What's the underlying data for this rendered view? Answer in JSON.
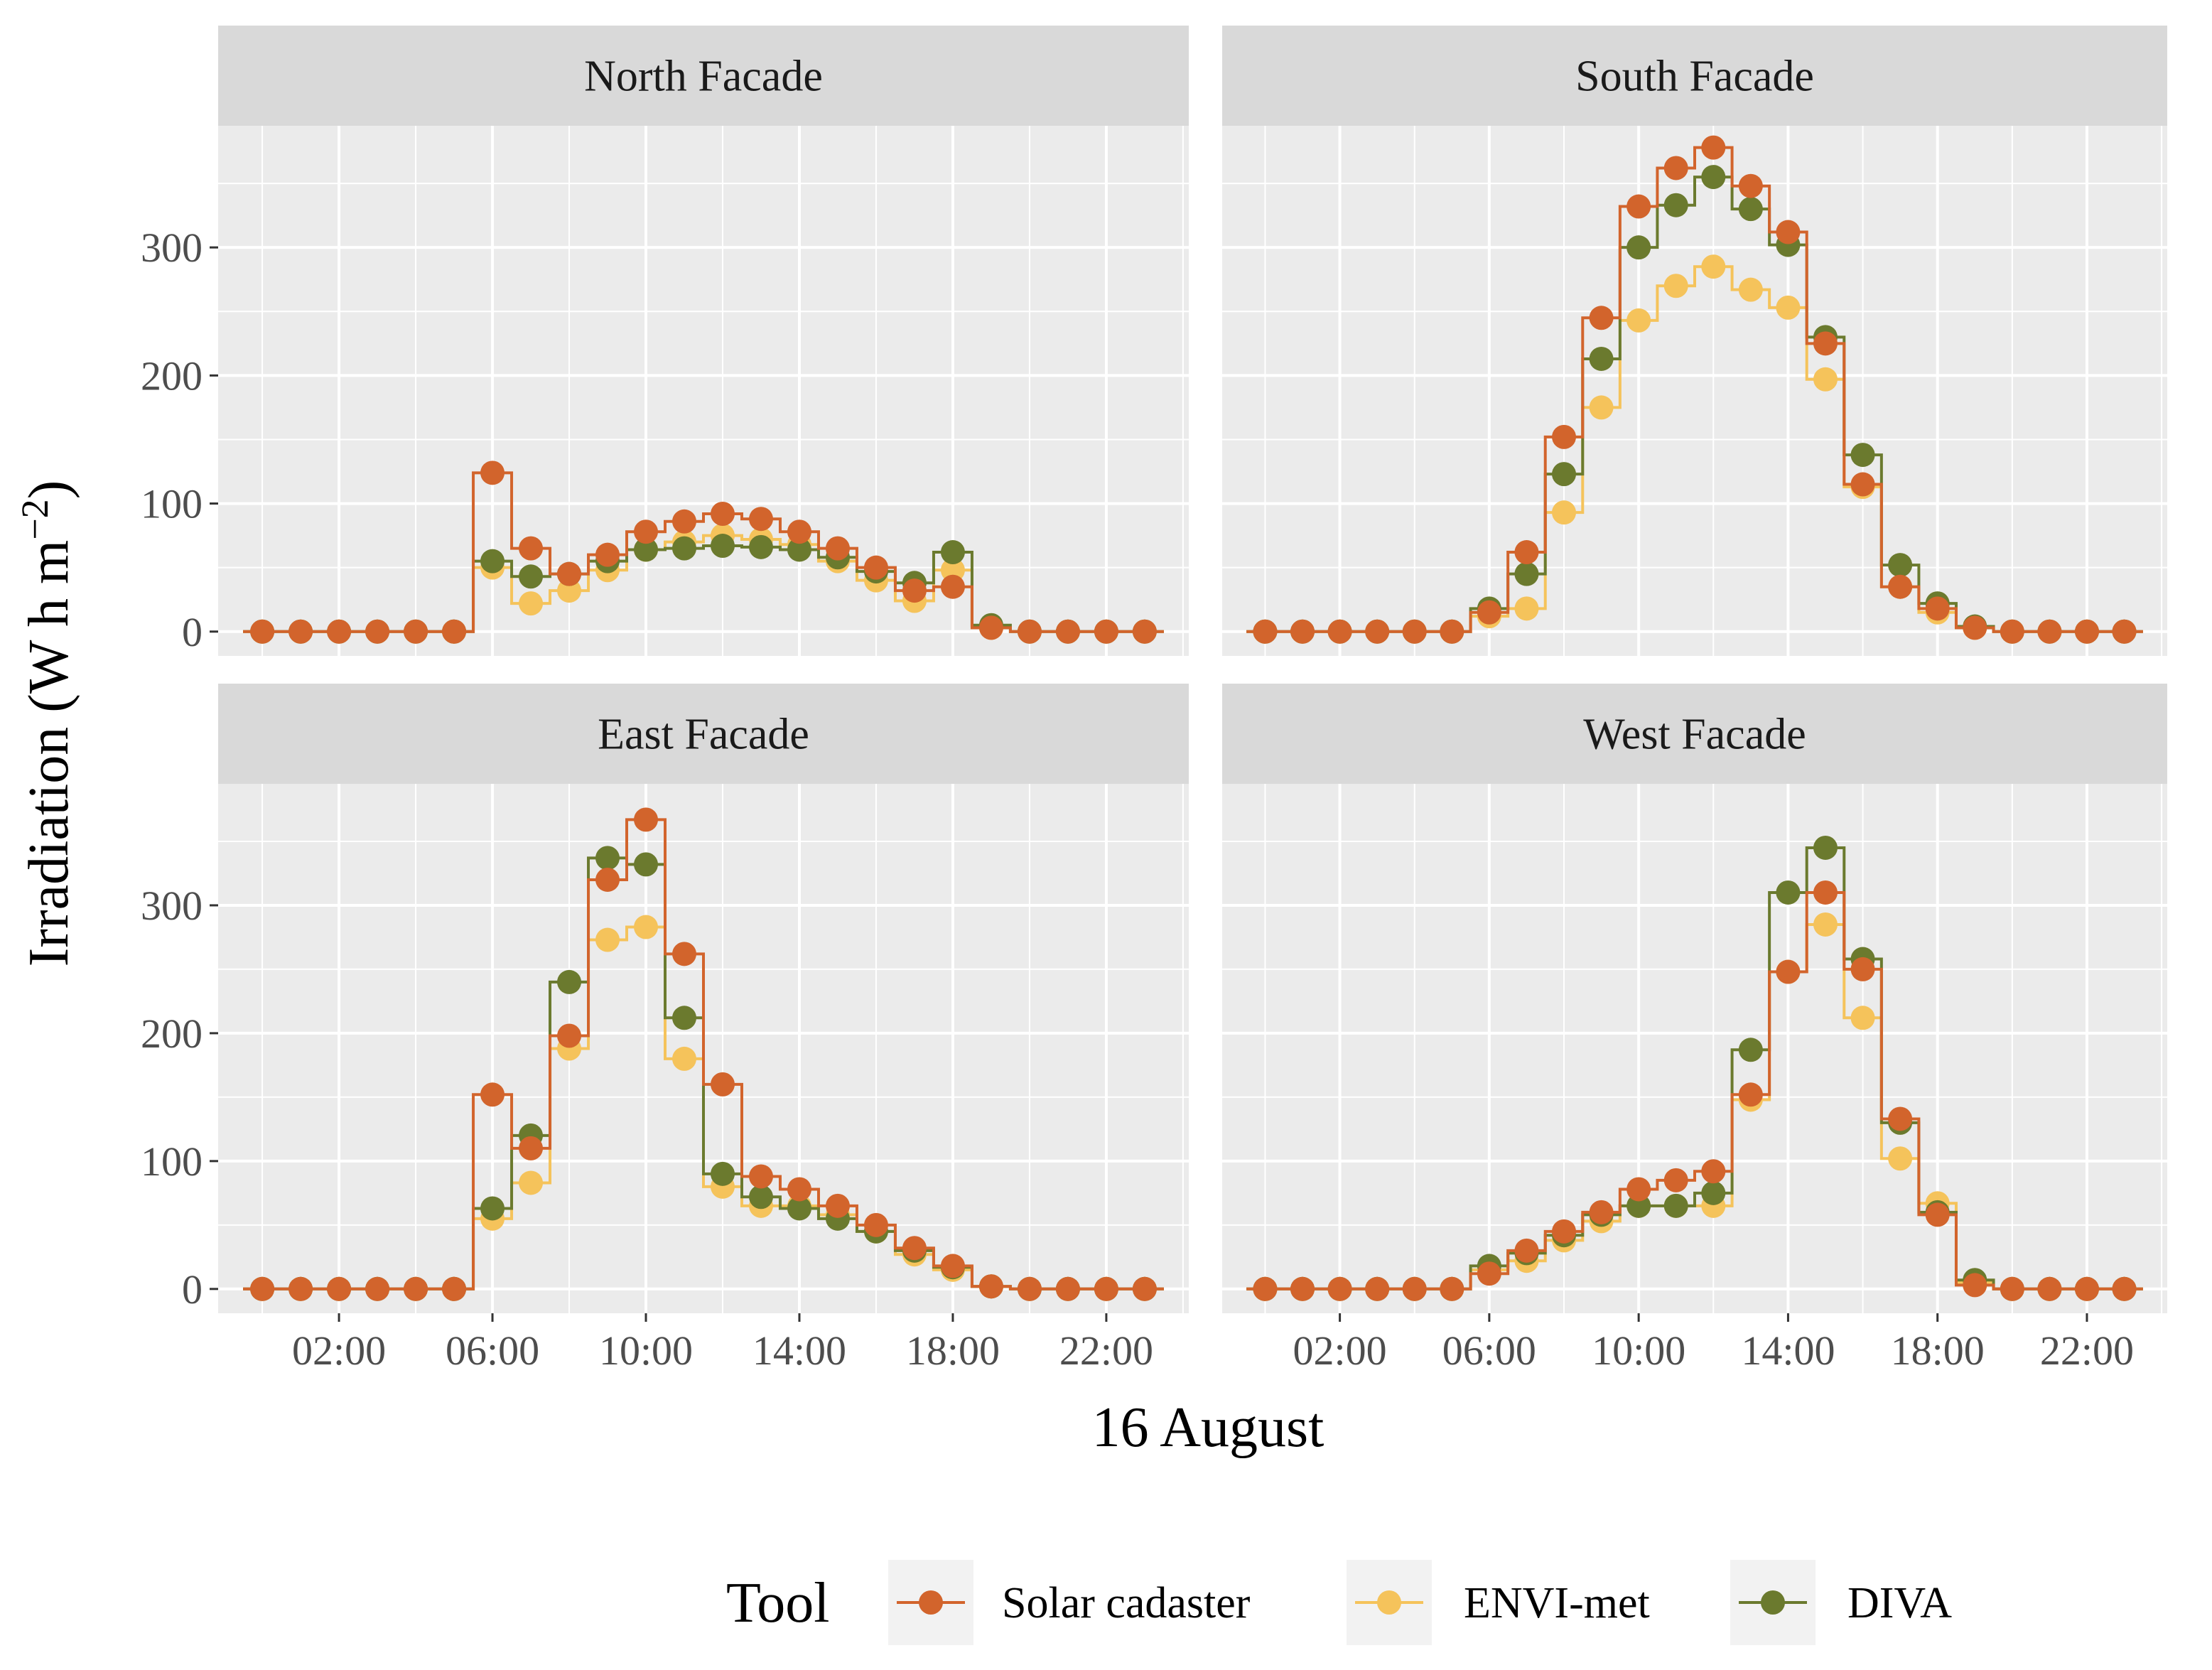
{
  "chart_data": {
    "type": "line",
    "step": "mid",
    "x_label": "16 August",
    "y_label": "Irradiation (W h m",
    "y_label_exp": "−2",
    "y_label_close": ")",
    "x_ticks": [
      {
        "hour": 2,
        "label": "02:00"
      },
      {
        "hour": 6,
        "label": "06:00"
      },
      {
        "hour": 10,
        "label": "10:00"
      },
      {
        "hour": 14,
        "label": "14:00"
      },
      {
        "hour": 18,
        "label": "18:00"
      },
      {
        "hour": 22,
        "label": "22:00"
      }
    ],
    "y_ticks": [
      0,
      100,
      200,
      300
    ],
    "x_range": [
      -1.15,
      24.15
    ],
    "y_range": [
      -19,
      395
    ],
    "hours": [
      0,
      1,
      2,
      3,
      4,
      5,
      6,
      7,
      8,
      9,
      10,
      11,
      12,
      13,
      14,
      15,
      16,
      17,
      18,
      19,
      20,
      21,
      22,
      23
    ],
    "legend": {
      "title": "Tool",
      "entries": [
        "Solar cadaster",
        "ENVI-met",
        "DIVA"
      ]
    },
    "colors": {
      "Solar cadaster": "#d2642c",
      "ENVI-met": "#f5c35b",
      "DIVA": "#6b7a2e"
    },
    "panels": [
      {
        "title": "North Facade",
        "series": [
          {
            "name": "ENVI-met",
            "values": [
              0,
              0,
              0,
              0,
              0,
              0,
              50,
              22,
              32,
              48,
              64,
              70,
              75,
              72,
              68,
              55,
              40,
              24,
              48,
              3,
              0,
              0,
              0,
              0
            ]
          },
          {
            "name": "DIVA",
            "values": [
              0,
              0,
              0,
              0,
              0,
              0,
              55,
              43,
              45,
              55,
              64,
              65,
              67,
              66,
              64,
              58,
              47,
              38,
              62,
              5,
              0,
              0,
              0,
              0
            ]
          },
          {
            "name": "Solar cadaster",
            "values": [
              0,
              0,
              0,
              0,
              0,
              0,
              124,
              65,
              45,
              60,
              78,
              86,
              92,
              88,
              78,
              65,
              50,
              32,
              35,
              3,
              0,
              0,
              0,
              0
            ]
          }
        ]
      },
      {
        "title": "South Facade",
        "series": [
          {
            "name": "ENVI-met",
            "values": [
              0,
              0,
              0,
              0,
              0,
              0,
              12,
              18,
              93,
              175,
              243,
              270,
              285,
              267,
              253,
              197,
              113,
              35,
              15,
              3,
              0,
              0,
              0,
              0
            ]
          },
          {
            "name": "DIVA",
            "values": [
              0,
              0,
              0,
              0,
              0,
              0,
              18,
              45,
              123,
              213,
              300,
              333,
              355,
              330,
              302,
              230,
              138,
              52,
              22,
              4,
              0,
              0,
              0,
              0
            ]
          },
          {
            "name": "Solar cadaster",
            "values": [
              0,
              0,
              0,
              0,
              0,
              0,
              15,
              62,
              152,
              245,
              332,
              362,
              378,
              348,
              312,
              225,
              115,
              35,
              18,
              3,
              0,
              0,
              0,
              0
            ]
          }
        ]
      },
      {
        "title": "East Facade",
        "series": [
          {
            "name": "ENVI-met",
            "values": [
              0,
              0,
              0,
              0,
              0,
              0,
              55,
              83,
              188,
              273,
              283,
              180,
              80,
              65,
              65,
              58,
              45,
              27,
              15,
              2,
              0,
              0,
              0,
              0
            ]
          },
          {
            "name": "DIVA",
            "values": [
              0,
              0,
              0,
              0,
              0,
              0,
              63,
              120,
              240,
              337,
              332,
              212,
              90,
              72,
              63,
              55,
              45,
              30,
              17,
              2,
              0,
              0,
              0,
              0
            ]
          },
          {
            "name": "Solar cadaster",
            "values": [
              0,
              0,
              0,
              0,
              0,
              0,
              152,
              110,
              198,
              320,
              367,
              262,
              160,
              88,
              78,
              65,
              50,
              32,
              18,
              2,
              0,
              0,
              0,
              0
            ]
          }
        ]
      },
      {
        "title": "West Facade",
        "series": [
          {
            "name": "ENVI-met",
            "values": [
              0,
              0,
              0,
              0,
              0,
              0,
              15,
              22,
              38,
              53,
              65,
              65,
              65,
              148,
              248,
              285,
              212,
              102,
              67,
              5,
              0,
              0,
              0,
              0
            ]
          },
          {
            "name": "DIVA",
            "values": [
              0,
              0,
              0,
              0,
              0,
              0,
              18,
              28,
              42,
              58,
              65,
              65,
              75,
              187,
              310,
              345,
              258,
              130,
              60,
              7,
              0,
              0,
              0,
              0
            ]
          },
          {
            "name": "Solar cadaster",
            "values": [
              0,
              0,
              0,
              0,
              0,
              0,
              12,
              30,
              45,
              60,
              78,
              85,
              92,
              152,
              248,
              310,
              250,
              133,
              58,
              3,
              0,
              0,
              0,
              0
            ]
          }
        ]
      }
    ]
  }
}
